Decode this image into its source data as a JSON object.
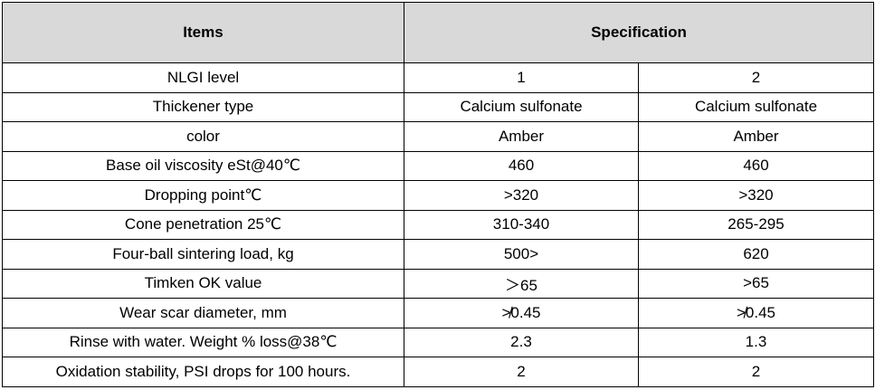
{
  "table": {
    "header": [
      "Items",
      "Specification"
    ],
    "rows": [
      [
        "NLGI level",
        "1",
        "2"
      ],
      [
        "Thickener type",
        "Calcium sulfonate",
        "Calcium sulfonate"
      ],
      [
        "color",
        "Amber",
        "Amber"
      ],
      [
        "Base oil viscosity eSt@40℃",
        "460",
        "460"
      ],
      [
        "Dropping point℃",
        ">320",
        ">320"
      ],
      [
        "Cone penetration 25℃",
        "310-340",
        "265-295"
      ],
      [
        "Four-ball sintering load, kg",
        "500>",
        "620"
      ],
      [
        "Timken OK value",
        "＞65",
        ">65"
      ],
      [
        "Wear scar diameter, mm",
        "≯0.45",
        "≯0.45"
      ],
      [
        "Rinse with water. Weight % loss@38℃",
        "2.3",
        "1.3"
      ],
      [
        "Oxidation stability, PSI drops for 100 hours.",
        "2",
        "2"
      ]
    ]
  }
}
